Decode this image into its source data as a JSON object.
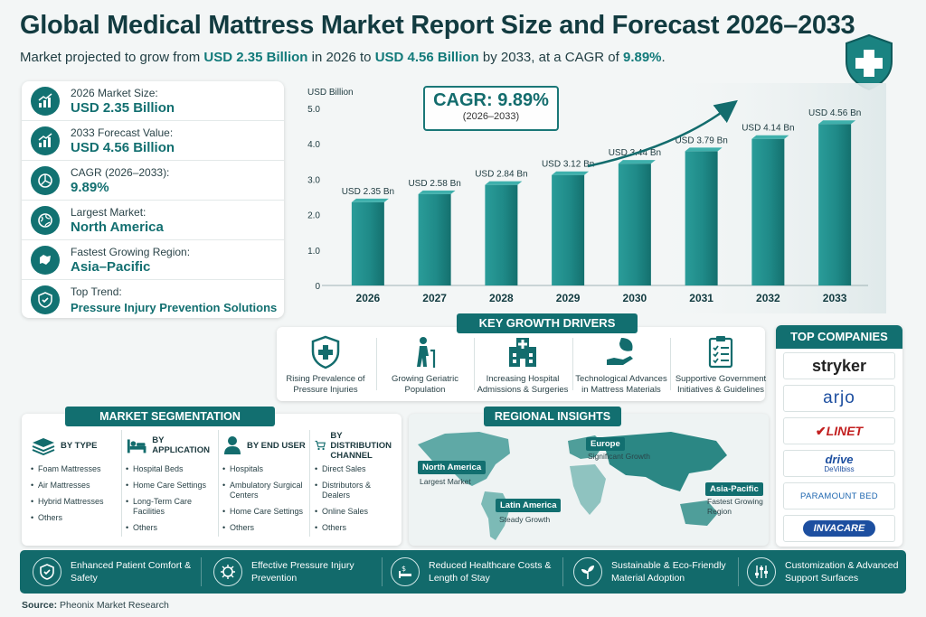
{
  "title": "Global Medical Mattress Market Report Size and Forecast 2026–2033",
  "subtitle": {
    "part1": "Market projected to grow from ",
    "value1": "USD 2.35 Billion",
    "part2": " in 2026 to ",
    "value2": "USD 4.56 Billion",
    "part3": " by 2033, at a CAGR of ",
    "value3": "9.89%",
    "part4": "."
  },
  "stats": [
    {
      "label": "2026 Market Size:",
      "value": "USD 2.35 Billion",
      "icon": "growth-chart-icon"
    },
    {
      "label": "2033 Forecast Value:",
      "value": "USD 4.56 Billion",
      "icon": "growth-chart-icon"
    },
    {
      "label": "CAGR (2026–2033):",
      "value": "9.89%",
      "icon": "pie-chart-icon"
    },
    {
      "label": "Largest Market:",
      "value": "North America",
      "icon": "globe-icon"
    },
    {
      "label": "Fastest Growing Region:",
      "value": "Asia–Pacific",
      "icon": "map-icon"
    },
    {
      "label": "Top Trend:",
      "value": "Pressure Injury Prevention Solutions",
      "icon": "shield-check-icon"
    }
  ],
  "cagr_box": {
    "main": "CAGR: 9.89%",
    "sub": "(2026–2033)"
  },
  "chart_data": {
    "type": "bar",
    "categories": [
      "2026",
      "2027",
      "2028",
      "2029",
      "2030",
      "2031",
      "2032",
      "2033"
    ],
    "values": [
      2.35,
      2.58,
      2.84,
      3.12,
      3.44,
      3.79,
      4.14,
      4.56
    ],
    "data_labels": [
      "USD 2.35 Bn",
      "USD 2.58 Bn",
      "USD 2.84 Bn",
      "USD 3.12 Bn",
      "USD 3.44 Bn",
      "USD 3.79 Bn",
      "USD 4.14 Bn",
      "USD 4.56 Bn"
    ],
    "ylabel": "USD Billion",
    "ylim": [
      0,
      5.0
    ],
    "yticks": [
      "0",
      "1.0",
      "2.0",
      "3.0",
      "4.0",
      "5.0"
    ],
    "grid": false,
    "bar_color": "#1f8a88"
  },
  "drivers": {
    "title": "KEY GROWTH DRIVERS",
    "items": [
      {
        "label": "Rising Prevalence of Pressure Injuries",
        "icon": "shield-plus-icon"
      },
      {
        "label": "Growing Geriatric Population",
        "icon": "elderly-person-icon"
      },
      {
        "label": "Increasing Hospital Admissions & Surgeries",
        "icon": "hospital-icon"
      },
      {
        "label": "Technological Advances in Mattress Materials",
        "icon": "leaf-hand-icon"
      },
      {
        "label": "Supportive Government Initiatives & Guidelines",
        "icon": "checklist-icon"
      }
    ]
  },
  "companies": {
    "title": "TOP COMPANIES",
    "items": [
      "stryker",
      "arjo",
      "LINET",
      "drive",
      "DeVilbiss",
      "PARAMOUNT BED",
      "INVACARE"
    ]
  },
  "segmentation": {
    "title": "MARKET SEGMENTATION",
    "columns": [
      {
        "head": "BY TYPE",
        "icon": "mattress-icon",
        "items": [
          "Foam Mattresses",
          "Air Mattresses",
          "Hybrid Mattresses",
          "Others"
        ]
      },
      {
        "head": "BY APPLICATION",
        "icon": "bed-icon",
        "items": [
          "Hospital Beds",
          "Home Care Settings",
          "Long-Term Care Facilities",
          "Others"
        ]
      },
      {
        "head": "BY END USER",
        "icon": "user-icon",
        "items": [
          "Hospitals",
          "Ambulatory Surgical Centers",
          "Home Care Settings",
          "Others"
        ]
      },
      {
        "head": "BY DISTRIBUTION CHANNEL",
        "icon": "cart-icon",
        "items": [
          "Direct Sales",
          "Distributors & Dealers",
          "Online Sales",
          "Others"
        ]
      }
    ]
  },
  "regional": {
    "title": "REGIONAL INSIGHTS",
    "regions": [
      {
        "name": "North America",
        "note": "Largest Market"
      },
      {
        "name": "Europe",
        "note": "Significant Growth"
      },
      {
        "name": "Latin America",
        "note": "Steady Growth"
      },
      {
        "name": "Asia-Pacific",
        "note": "Fastest Growing Region"
      }
    ]
  },
  "bottom_features": [
    {
      "label": "Enhanced Patient Comfort & Safety",
      "icon": "shield-icon"
    },
    {
      "label": "Effective Pressure Injury Prevention",
      "icon": "virus-icon"
    },
    {
      "label": "Reduced Healthcare Costs & Length of Stay",
      "icon": "cost-bed-icon"
    },
    {
      "label": "Sustainable & Eco-Friendly Material Adoption",
      "icon": "plant-icon"
    },
    {
      "label": "Customization & Advanced Support Surfaces",
      "icon": "sliders-icon"
    }
  ],
  "source": {
    "label": "Source:",
    "value": "Pheonix Market Research"
  },
  "colors": {
    "accent": "#126f70",
    "bar": "#1f8a88",
    "dark_text": "#123b40"
  }
}
